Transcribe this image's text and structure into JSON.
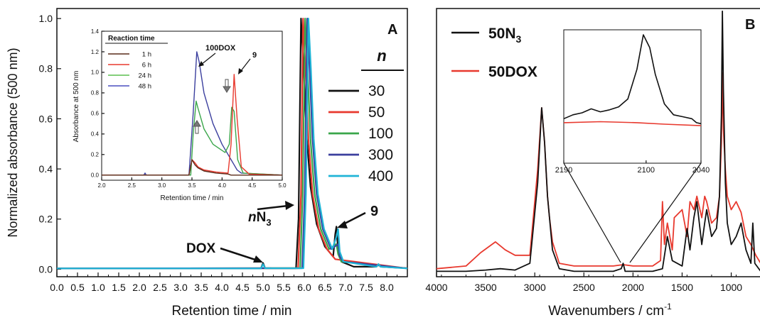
{
  "colors": {
    "black": "#111111",
    "red": "#e8392e",
    "green": "#3aa64a",
    "blue": "#3b3f9e",
    "cyan": "#1fb4d6",
    "brown": "#5a2b1a",
    "inset_red": "#e8392e",
    "inset_green": "#5bbf4f",
    "inset_blue": "#4a4fc0"
  },
  "chart_data": [
    {
      "type": "line",
      "panel_label": "A",
      "xlabel": "Retention time / min",
      "ylabel": "Normalized absorbance (500 nm)",
      "xlim": [
        0.0,
        8.5
      ],
      "ylim": [
        -0.03,
        1.04
      ],
      "xticks": [
        "0.0",
        "0.5",
        "1.0",
        "1.5",
        "2.0",
        "2.5",
        "3.0",
        "3.5",
        "4.0",
        "4.5",
        "5.0",
        "5.5",
        "6.0",
        "6.5",
        "7.0",
        "7.5",
        "8.0"
      ],
      "yticks": [
        "0.0",
        "0.2",
        "0.4",
        "0.6",
        "0.8",
        "1.0"
      ],
      "legend_title": "n",
      "series": [
        {
          "name": "30",
          "color": "black",
          "peak_x": 5.92,
          "peak_y": 1.0,
          "x": [
            0,
            4.95,
            5.0,
            5.05,
            5.8,
            5.86,
            5.92,
            5.98,
            6.05,
            6.15,
            6.3,
            6.5,
            6.7,
            6.75,
            6.78,
            6.82,
            6.9,
            7.2,
            7.75,
            7.8,
            7.85,
            8.5
          ],
          "y": [
            0.003,
            0.003,
            0.025,
            0.004,
            0.004,
            0.2,
            1.0,
            0.82,
            0.55,
            0.33,
            0.18,
            0.09,
            0.05,
            0.14,
            0.17,
            0.07,
            0.03,
            0.01,
            0.01,
            0.02,
            0.01,
            0.004
          ]
        },
        {
          "name": "50",
          "color": "red",
          "peak_x": 5.97,
          "peak_y": 1.0,
          "x": [
            0,
            5.85,
            5.92,
            5.97,
            6.03,
            6.1,
            6.2,
            6.35,
            6.55,
            6.75,
            8.5
          ],
          "y": [
            0.003,
            0.004,
            0.3,
            1.0,
            0.8,
            0.52,
            0.3,
            0.16,
            0.08,
            0.04,
            0.003
          ]
        },
        {
          "name": "100",
          "color": "green",
          "peak_x": 6.02,
          "peak_y": 1.0,
          "x": [
            0,
            5.9,
            5.96,
            6.02,
            6.08,
            6.15,
            6.25,
            6.4,
            6.6,
            6.78,
            6.82,
            6.9,
            8.5
          ],
          "y": [
            0.003,
            0.004,
            0.3,
            1.0,
            0.8,
            0.52,
            0.3,
            0.16,
            0.08,
            0.1,
            0.06,
            0.03,
            0.003
          ]
        },
        {
          "name": "300",
          "color": "blue",
          "peak_x": 6.07,
          "peak_y": 1.0,
          "x": [
            0,
            5.95,
            6.01,
            6.07,
            6.13,
            6.2,
            6.3,
            6.45,
            6.65,
            6.82,
            6.86,
            6.95,
            8.5
          ],
          "y": [
            0.003,
            0.004,
            0.3,
            1.0,
            0.8,
            0.52,
            0.3,
            0.16,
            0.08,
            0.1,
            0.05,
            0.03,
            0.003
          ]
        },
        {
          "name": "400",
          "color": "cyan",
          "peak_x": 6.1,
          "peak_y": 1.0,
          "x": [
            0,
            4.95,
            5.0,
            5.05,
            5.98,
            6.04,
            6.1,
            6.16,
            6.23,
            6.33,
            6.48,
            6.68,
            6.78,
            6.82,
            6.86,
            6.95,
            7.75,
            7.8,
            7.85,
            8.5
          ],
          "y": [
            0.003,
            0.003,
            0.02,
            0.004,
            0.004,
            0.3,
            1.0,
            0.8,
            0.52,
            0.3,
            0.16,
            0.08,
            0.13,
            0.16,
            0.07,
            0.03,
            0.01,
            0.02,
            0.01,
            0.003
          ]
        }
      ],
      "annotations": [
        {
          "text": "DOX",
          "x": 4.95,
          "y": 0.02
        },
        {
          "text_italic": "n",
          "text_main": "N",
          "text_sub": "3",
          "x": 5.88,
          "y": 0.22
        },
        {
          "text": "9",
          "x": 6.8,
          "y": 0.15
        }
      ]
    },
    {
      "type": "line",
      "panel_label": "inset",
      "xlabel": "Retention time / min",
      "ylabel": "Absorbance at 500 nm",
      "xlim": [
        2.0,
        5.0
      ],
      "ylim": [
        -0.05,
        1.4
      ],
      "xticks": [
        "2.0",
        "2.5",
        "3.0",
        "3.5",
        "4.0",
        "4.5",
        "5.0"
      ],
      "yticks": [
        "0.0",
        "0.2",
        "0.4",
        "0.6",
        "0.8",
        "1.0",
        "1.2",
        "1.4"
      ],
      "legend_title": "Reaction time",
      "series": [
        {
          "name": "1 h",
          "color": "brown",
          "x": [
            2.0,
            3.45,
            3.5,
            3.55,
            3.6,
            3.7,
            3.9,
            4.1,
            4.15,
            4.2,
            4.25,
            4.35,
            5.0
          ],
          "y": [
            0.0,
            0.0,
            0.15,
            0.1,
            0.07,
            0.04,
            0.02,
            0.01,
            0.0,
            0.0,
            0.0,
            0.0,
            0.0
          ]
        },
        {
          "name": "6 h",
          "color": "red",
          "x": [
            2.0,
            3.45,
            3.5,
            3.55,
            3.6,
            3.7,
            3.9,
            4.1,
            4.15,
            4.2,
            4.25,
            4.32,
            4.45,
            5.0
          ],
          "y": [
            0.0,
            0.0,
            0.15,
            0.12,
            0.08,
            0.05,
            0.03,
            0.02,
            0.3,
            0.98,
            0.55,
            0.08,
            0.01,
            0.0
          ]
        },
        {
          "name": "24 h",
          "color": "green",
          "x": [
            2.0,
            3.48,
            3.52,
            3.57,
            3.6,
            3.7,
            3.85,
            4.05,
            4.12,
            4.16,
            4.2,
            4.26,
            4.35,
            5.0
          ],
          "y": [
            0.0,
            0.0,
            0.4,
            0.72,
            0.65,
            0.45,
            0.3,
            0.22,
            0.3,
            0.66,
            0.62,
            0.15,
            0.02,
            0.0
          ]
        },
        {
          "name": "48 h",
          "color": "blue",
          "x": [
            2.0,
            2.7,
            2.72,
            2.74,
            3.45,
            3.52,
            3.58,
            3.62,
            3.7,
            3.85,
            4.0,
            4.1,
            4.15,
            4.2,
            4.25,
            4.32,
            5.0
          ],
          "y": [
            0.0,
            0.0,
            0.02,
            0.0,
            0.0,
            0.6,
            1.2,
            1.1,
            0.8,
            0.5,
            0.3,
            0.2,
            0.15,
            0.1,
            0.05,
            0.02,
            0.0
          ]
        }
      ],
      "annotations": [
        {
          "text": "100DOX",
          "x": 3.6,
          "y": 1.18
        },
        {
          "text": "9",
          "x": 4.22,
          "y": 0.98
        }
      ]
    },
    {
      "type": "line",
      "panel_label": "B",
      "xlabel": "Wavenumbers / cm",
      "xlabel_sup": "-1",
      "xlim": [
        4000,
        700
      ],
      "ylim": [
        0,
        1.0
      ],
      "xticks": [
        "4000",
        "3500",
        "3000",
        "2500",
        "2000",
        "1500",
        "1000"
      ],
      "series": [
        {
          "name_main": "50N",
          "name_sub": "3",
          "color": "black",
          "x": [
            4000,
            3700,
            3500,
            3350,
            3200,
            3050,
            2970,
            2930,
            2900,
            2870,
            2850,
            2820,
            2750,
            2600,
            2400,
            2200,
            2120,
            2100,
            2080,
            2000,
            1800,
            1700,
            1650,
            1600,
            1500,
            1450,
            1420,
            1380,
            1350,
            1300,
            1270,
            1250,
            1200,
            1150,
            1120,
            1100,
            1090,
            1080,
            1060,
            1040,
            1000,
            950,
            900,
            850,
            800,
            780,
            760,
            700
          ],
          "y": [
            0.02,
            0.02,
            0.025,
            0.03,
            0.025,
            0.05,
            0.35,
            0.63,
            0.5,
            0.3,
            0.22,
            0.1,
            0.03,
            0.02,
            0.02,
            0.02,
            0.03,
            0.05,
            0.02,
            0.02,
            0.02,
            0.03,
            0.15,
            0.06,
            0.04,
            0.18,
            0.1,
            0.22,
            0.28,
            0.12,
            0.2,
            0.25,
            0.15,
            0.18,
            0.3,
            0.6,
            0.99,
            0.7,
            0.35,
            0.2,
            0.12,
            0.15,
            0.2,
            0.1,
            0.05,
            0.2,
            0.05,
            0.02
          ]
        },
        {
          "name": "50DOX",
          "color": "red",
          "x": [
            4000,
            3700,
            3550,
            3400,
            3300,
            3200,
            3050,
            2970,
            2930,
            2900,
            2870,
            2850,
            2820,
            2750,
            2600,
            2400,
            2200,
            2100,
            2000,
            1800,
            1720,
            1700,
            1680,
            1650,
            1600,
            1580,
            1500,
            1450,
            1420,
            1380,
            1350,
            1300,
            1270,
            1250,
            1200,
            1150,
            1120,
            1100,
            1090,
            1080,
            1060,
            1040,
            1000,
            950,
            900,
            850,
            800,
            750,
            700
          ],
          "y": [
            0.03,
            0.04,
            0.09,
            0.13,
            0.1,
            0.08,
            0.08,
            0.4,
            0.63,
            0.5,
            0.3,
            0.22,
            0.13,
            0.05,
            0.04,
            0.04,
            0.04,
            0.045,
            0.04,
            0.04,
            0.06,
            0.28,
            0.12,
            0.2,
            0.1,
            0.22,
            0.25,
            0.15,
            0.28,
            0.25,
            0.3,
            0.22,
            0.3,
            0.28,
            0.2,
            0.22,
            0.3,
            0.5,
            0.76,
            0.55,
            0.4,
            0.3,
            0.25,
            0.28,
            0.24,
            0.15,
            0.12,
            0.08,
            0.05
          ]
        }
      ]
    },
    {
      "type": "line",
      "panel_label": "B-inset",
      "xlim": [
        2190,
        2040
      ],
      "xticks": [
        "2190",
        "2100",
        "2040"
      ],
      "series": [
        {
          "name_main": "50N",
          "name_sub": "3",
          "color": "black",
          "x": [
            2190,
            2180,
            2170,
            2160,
            2150,
            2140,
            2130,
            2120,
            2110,
            2103,
            2096,
            2090,
            2080,
            2070,
            2060,
            2050,
            2045,
            2040
          ],
          "y": [
            0.1,
            0.14,
            0.16,
            0.2,
            0.17,
            0.19,
            0.22,
            0.3,
            0.6,
            0.95,
            0.82,
            0.55,
            0.25,
            0.14,
            0.12,
            0.1,
            0.06,
            0.05
          ]
        },
        {
          "name": "50DOX",
          "color": "red",
          "x": [
            2190,
            2150,
            2110,
            2080,
            2040
          ],
          "y": [
            0.06,
            0.07,
            0.06,
            0.045,
            0.03
          ]
        }
      ]
    }
  ]
}
